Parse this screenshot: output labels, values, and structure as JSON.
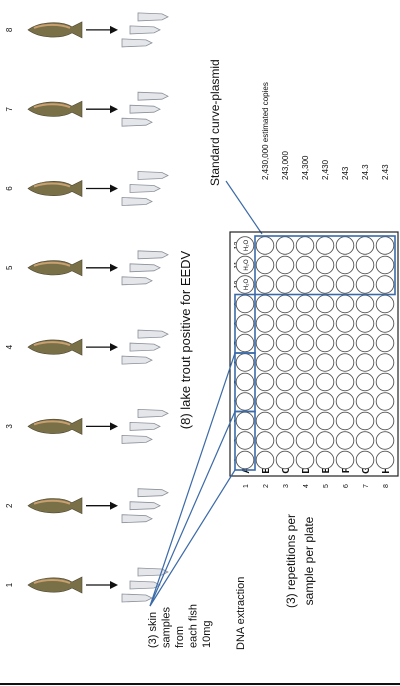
{
  "title": "(8) lake trout positive for EEDV",
  "fish_labels": [
    "1",
    "2",
    "3",
    "4",
    "5",
    "6",
    "7",
    "8"
  ],
  "skin_samples": [
    "(3) skin",
    "samples",
    "from",
    "each fish",
    "10mg"
  ],
  "dna_extraction": "DNA extraction",
  "repetitions": [
    "(3) repetitions per",
    "sample per plate"
  ],
  "plate": {
    "column_labels": [
      "1",
      "2",
      "3",
      "4",
      "5",
      "6",
      "7",
      "8",
      "9",
      "10",
      "11",
      "12"
    ],
    "row_labels": [
      "A",
      "B",
      "C",
      "D",
      "E",
      "F",
      "G",
      "H"
    ],
    "row_numbers": [
      "1",
      "2",
      "3",
      "4",
      "5",
      "6",
      "7",
      "8"
    ],
    "water_labels": [
      "H₂O",
      "H₂O",
      "H₂O"
    ]
  },
  "standard_curve": {
    "label": "Standard curve-plasmid",
    "concentrations": [
      "2,430,000 estimated copies",
      "243,000",
      "24,300",
      "2,430",
      "243",
      "24.3",
      "2.43"
    ]
  }
}
